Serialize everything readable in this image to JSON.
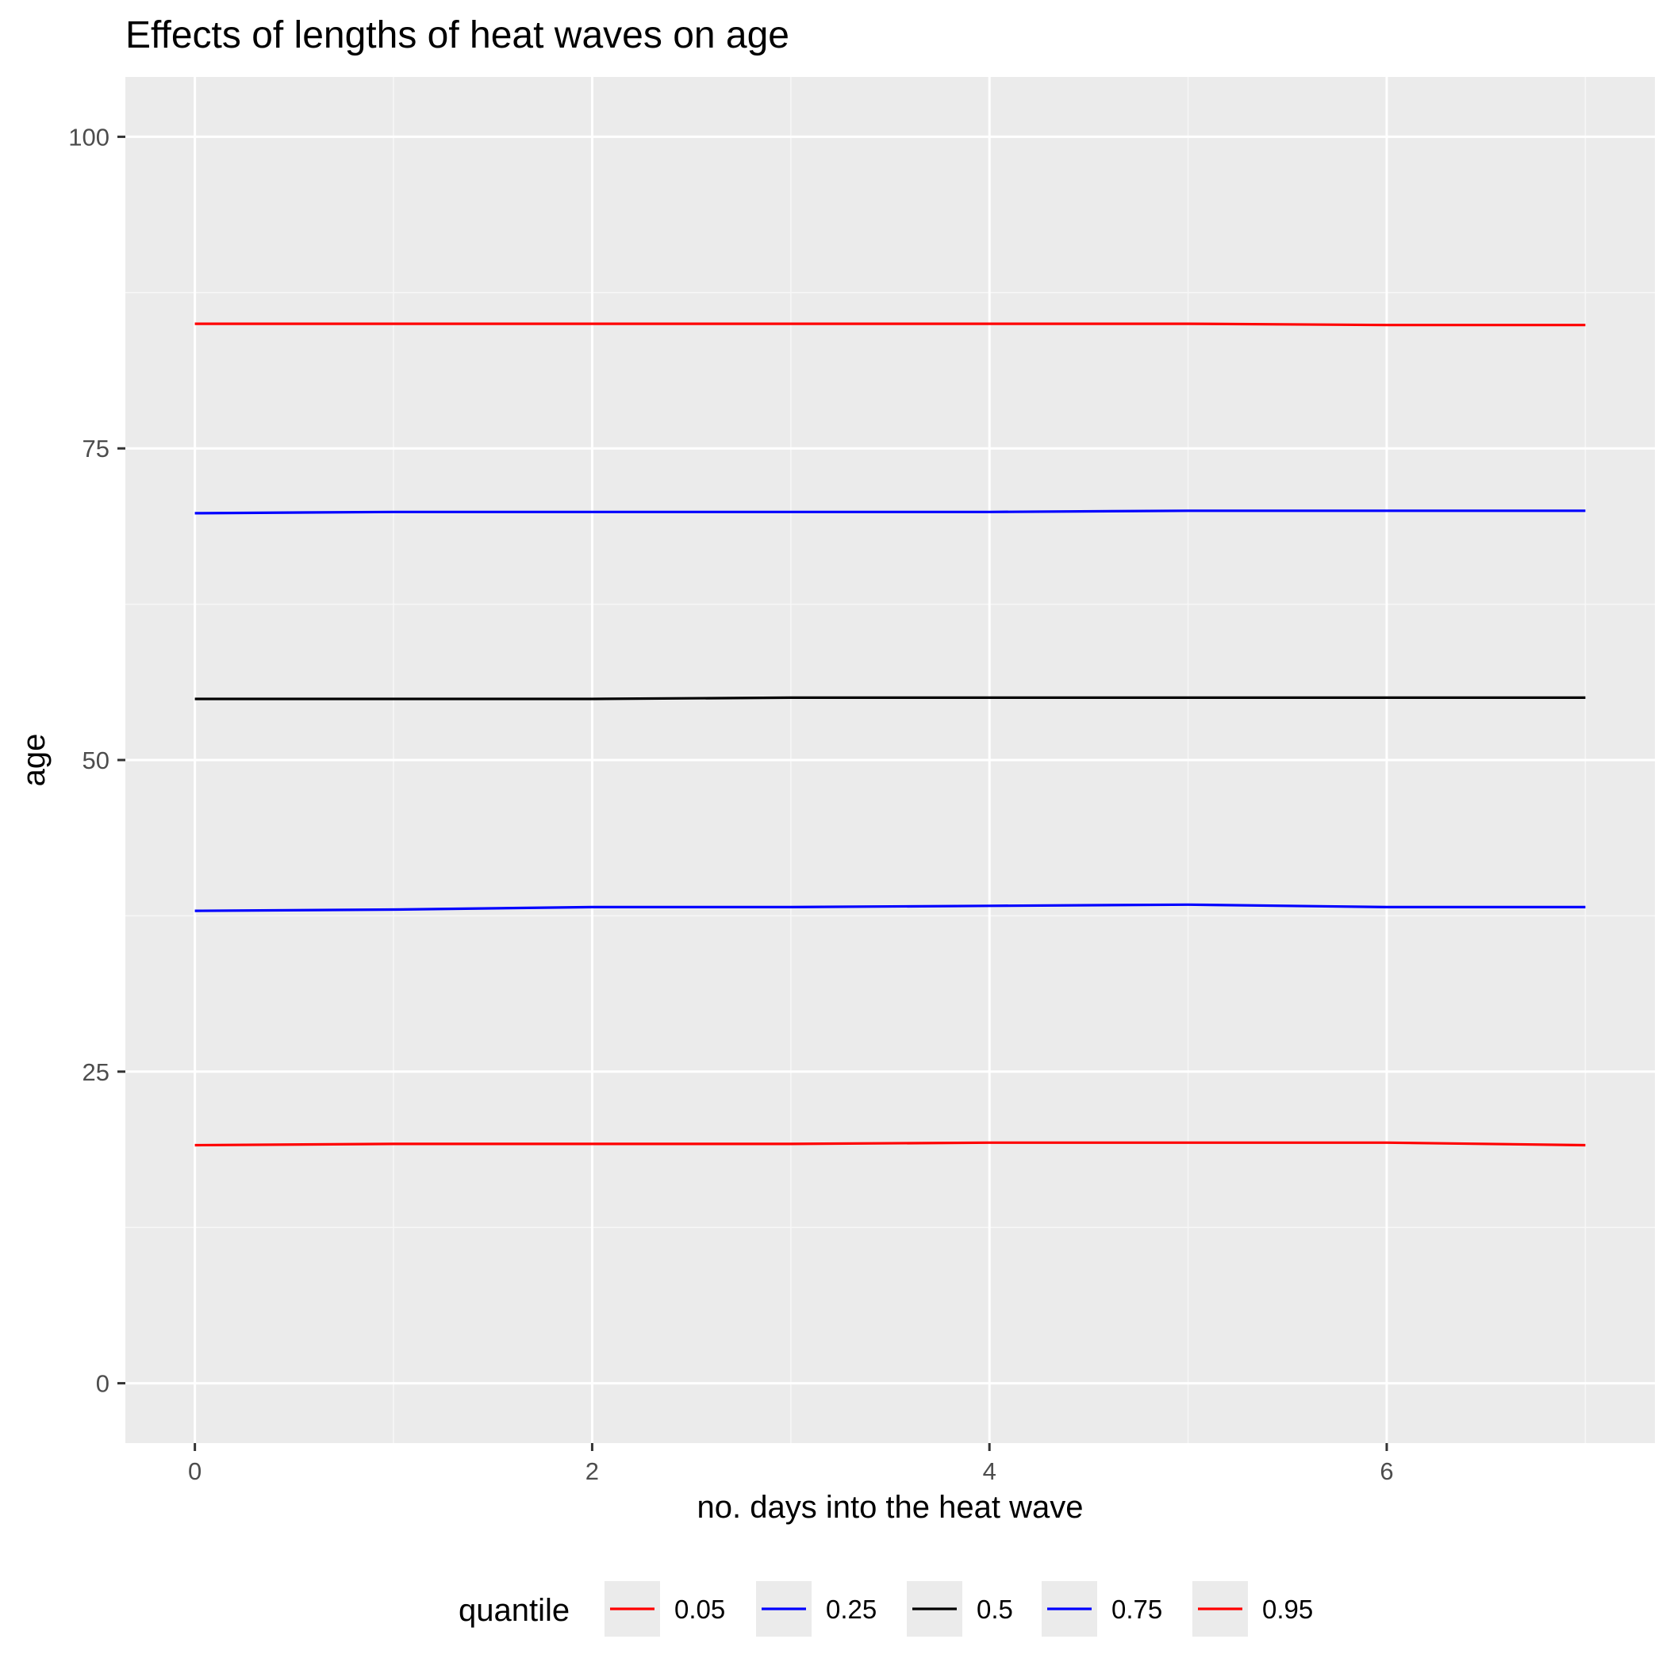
{
  "chart_data": {
    "type": "line",
    "title": "Effects of lengths of heat waves on age",
    "xlabel": "no. days into the heat wave",
    "ylabel": "age",
    "xlim": [
      -0.35,
      7.35
    ],
    "ylim": [
      -4.8,
      104.8
    ],
    "x_ticks": [
      0,
      2,
      4,
      6
    ],
    "x_minor_ticks": [
      1,
      3,
      5,
      7
    ],
    "y_ticks": [
      0,
      25,
      50,
      75,
      100
    ],
    "y_minor_ticks": [
      12.5,
      37.5,
      62.5,
      87.5
    ],
    "grid": true,
    "legend_title": "quantile",
    "legend_position": "bottom",
    "x": [
      0,
      1,
      2,
      3,
      4,
      5,
      6,
      7
    ],
    "series": [
      {
        "name": "0.05",
        "color": "#FF0000",
        "values": [
          19.1,
          19.2,
          19.2,
          19.2,
          19.3,
          19.3,
          19.3,
          19.1
        ]
      },
      {
        "name": "0.25",
        "color": "#0000FF",
        "values": [
          37.9,
          38.0,
          38.2,
          38.2,
          38.3,
          38.4,
          38.2,
          38.2
        ]
      },
      {
        "name": "0.5",
        "color": "#000000",
        "values": [
          54.9,
          54.9,
          54.9,
          55.0,
          55.0,
          55.0,
          55.0,
          55.0
        ]
      },
      {
        "name": "0.75",
        "color": "#0000FF",
        "values": [
          69.8,
          69.9,
          69.9,
          69.9,
          69.9,
          70.0,
          70.0,
          70.0
        ]
      },
      {
        "name": "0.95",
        "color": "#FF0000",
        "values": [
          85.0,
          85.0,
          85.0,
          85.0,
          85.0,
          85.0,
          84.9,
          84.9
        ]
      }
    ]
  },
  "colors": {
    "panel_background": "#EBEBEB",
    "grid_major": "#FFFFFF",
    "grid_minor": "#F7F7F7",
    "tick_text": "#4D4D4D",
    "tick_mark": "#333333",
    "legend_key_background": "#EBEBEB"
  }
}
